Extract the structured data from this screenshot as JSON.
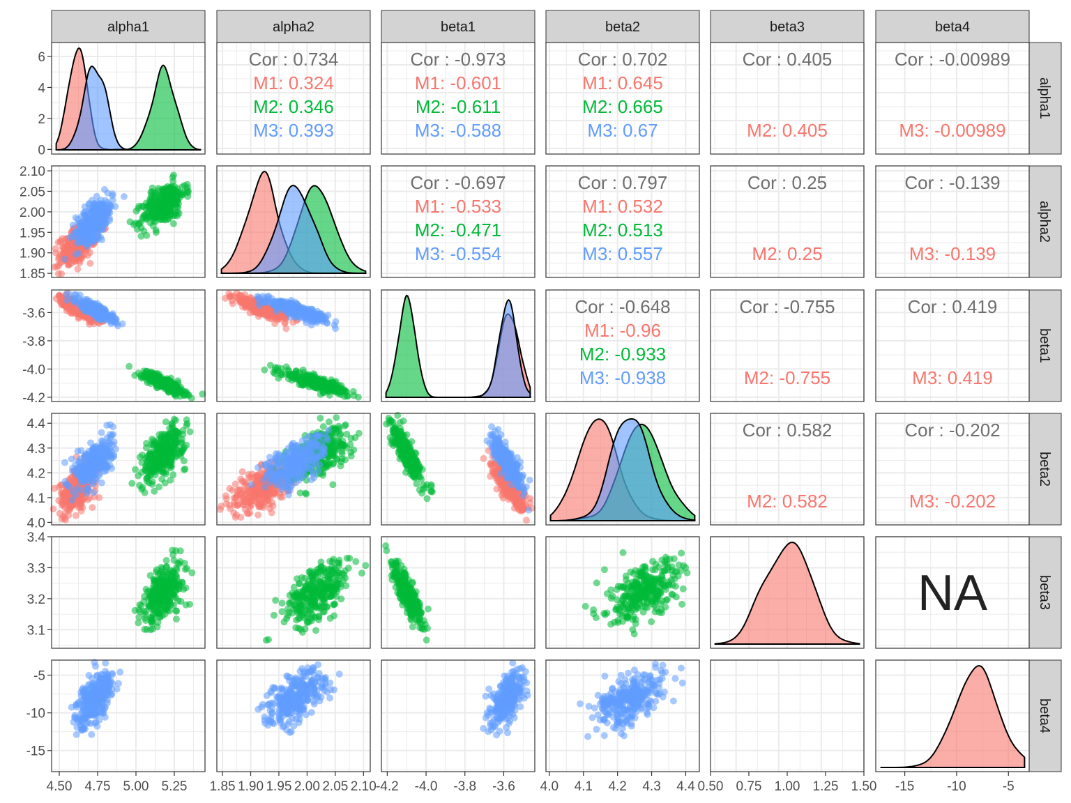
{
  "chart_data": {
    "type": "scatter",
    "variables": [
      "alpha1",
      "alpha2",
      "beta1",
      "beta2",
      "beta3",
      "beta4"
    ],
    "groups": [
      "M1",
      "M2",
      "M3"
    ],
    "colors": {
      "M1": "#F8766D",
      "M2": "#00BA38",
      "M3": "#619CFF",
      "panel_border": "#333333",
      "grid": "#EBEBEB",
      "strip": "#D3D3D3"
    },
    "axes": {
      "alpha1": {
        "range": [
          4.45,
          5.45
        ],
        "ticks": [
          4.5,
          4.75,
          5.0,
          5.25
        ],
        "tick_labels": [
          "4.50",
          "4.75",
          "5.00",
          "5.25"
        ]
      },
      "alpha2": {
        "range": [
          1.84,
          2.112
        ],
        "ticks": [
          1.85,
          1.9,
          1.95,
          2.0,
          2.05,
          2.1
        ],
        "tick_labels": [
          "1.85",
          "1.90",
          "1.95",
          "2.00",
          "2.05",
          "2.10"
        ]
      },
      "beta1": {
        "range": [
          -4.23,
          -3.44
        ],
        "ticks": [
          -4.2,
          -4.0,
          -3.8,
          -3.6
        ],
        "tick_labels": [
          "-4.2",
          "-4.0",
          "-3.8",
          "-3.6"
        ]
      },
      "beta2": {
        "range": [
          3.99,
          4.44
        ],
        "ticks": [
          4.0,
          4.1,
          4.2,
          4.3,
          4.4
        ],
        "tick_labels": [
          "4.0",
          "4.1",
          "4.2",
          "4.3",
          "4.4"
        ]
      },
      "beta3": {
        "range": [
          3.04,
          3.4
        ],
        "ticks": [
          3.1,
          3.2,
          3.3,
          3.4
        ],
        "tick_labels": [
          "3.1",
          "3.2",
          "3.3",
          "3.4"
        ]
      },
      "beta4": {
        "range": [
          -17.8,
          -3.0
        ],
        "ticks": [
          -15,
          -10,
          -5
        ],
        "tick_labels": [
          "-15",
          "-10",
          "-5"
        ]
      }
    },
    "density_x_axes": {
      "beta3": {
        "range": [
          0.5,
          1.5
        ],
        "ticks": [
          0.5,
          0.75,
          1.0,
          1.25,
          1.5
        ],
        "tick_labels": [
          "0.50",
          "0.75",
          "1.00",
          "1.25",
          "1.50"
        ]
      }
    },
    "density_y_axis": {
      "range": [
        -0.3,
        6.9
      ],
      "ticks": [
        0,
        2,
        4,
        6
      ],
      "tick_labels": [
        "0",
        "2",
        "4",
        "6"
      ]
    },
    "groups_present": {
      "alpha1": [
        "M1",
        "M2",
        "M3"
      ],
      "alpha2": [
        "M1",
        "M2",
        "M3"
      ],
      "beta1": [
        "M1",
        "M2",
        "M3"
      ],
      "beta2": [
        "M1",
        "M2",
        "M3"
      ],
      "beta3": [
        "M2"
      ],
      "beta4": [
        "M3"
      ]
    },
    "group_stats": {
      "M1": {
        "mean": {
          "alpha1": 4.62,
          "alpha2": 1.92,
          "beta1": -3.57,
          "beta2": 4.14
        },
        "sd": {
          "alpha1": 0.06,
          "alpha2": 0.026,
          "beta1": 0.045,
          "beta2": 0.05
        }
      },
      "M2": {
        "mean": {
          "alpha1": 5.18,
          "alpha2": 2.018,
          "beta1": -4.1,
          "beta2": 4.28,
          "beta3": 3.22
        },
        "sd": {
          "alpha1": 0.07,
          "alpha2": 0.028,
          "beta1": 0.04,
          "beta2": 0.055,
          "beta3": 0.05
        }
      },
      "M3": {
        "mean": {
          "alpha1": 4.73,
          "alpha2": 1.98,
          "beta1": -3.58,
          "beta2": 4.24,
          "beta4": -8
        },
        "sd": {
          "alpha1": 0.06,
          "alpha2": 0.027,
          "beta1": 0.04,
          "beta2": 0.05,
          "beta4": 1.8
        }
      }
    },
    "correlations": [
      {
        "row": "alpha1",
        "col": "alpha2",
        "cor": "Cor : 0.734",
        "groups": [
          {
            "label": "M1: 0.324",
            "group": "M1"
          },
          {
            "label": "M2: 0.346",
            "group": "M2"
          },
          {
            "label": "M3: 0.393",
            "group": "M3"
          }
        ]
      },
      {
        "row": "alpha1",
        "col": "beta1",
        "cor": "Cor : -0.973",
        "groups": [
          {
            "label": "M1: -0.601",
            "group": "M1"
          },
          {
            "label": "M2: -0.611",
            "group": "M2"
          },
          {
            "label": "M3: -0.588",
            "group": "M3"
          }
        ]
      },
      {
        "row": "alpha1",
        "col": "beta2",
        "cor": "Cor : 0.702",
        "groups": [
          {
            "label": "M1: 0.645",
            "group": "M1"
          },
          {
            "label": "M2: 0.665",
            "group": "M2"
          },
          {
            "label": "M3: 0.67",
            "group": "M3"
          }
        ]
      },
      {
        "row": "alpha1",
        "col": "beta3",
        "cor": "Cor : 0.405",
        "groups": [
          {
            "label": "M2: 0.405",
            "group": "M1"
          }
        ]
      },
      {
        "row": "alpha1",
        "col": "beta4",
        "cor": "Cor : -0.00989",
        "groups": [
          {
            "label": "M3: -0.00989",
            "group": "M1"
          }
        ]
      },
      {
        "row": "alpha2",
        "col": "beta1",
        "cor": "Cor : -0.697",
        "groups": [
          {
            "label": "M1: -0.533",
            "group": "M1"
          },
          {
            "label": "M2: -0.471",
            "group": "M2"
          },
          {
            "label": "M3: -0.554",
            "group": "M3"
          }
        ]
      },
      {
        "row": "alpha2",
        "col": "beta2",
        "cor": "Cor : 0.797",
        "groups": [
          {
            "label": "M1: 0.532",
            "group": "M1"
          },
          {
            "label": "M2: 0.513",
            "group": "M2"
          },
          {
            "label": "M3: 0.557",
            "group": "M3"
          }
        ]
      },
      {
        "row": "alpha2",
        "col": "beta3",
        "cor": "Cor : 0.25",
        "groups": [
          {
            "label": "M2: 0.25",
            "group": "M1"
          }
        ]
      },
      {
        "row": "alpha2",
        "col": "beta4",
        "cor": "Cor : -0.139",
        "groups": [
          {
            "label": "M3: -0.139",
            "group": "M1"
          }
        ]
      },
      {
        "row": "beta1",
        "col": "beta2",
        "cor": "Cor : -0.648",
        "groups": [
          {
            "label": "M1: -0.96",
            "group": "M1"
          },
          {
            "label": "M2: -0.933",
            "group": "M2"
          },
          {
            "label": "M3: -0.938",
            "group": "M3"
          }
        ]
      },
      {
        "row": "beta1",
        "col": "beta3",
        "cor": "Cor : -0.755",
        "groups": [
          {
            "label": "M2: -0.755",
            "group": "M1"
          }
        ]
      },
      {
        "row": "beta1",
        "col": "beta4",
        "cor": "Cor : 0.419",
        "groups": [
          {
            "label": "M3: 0.419",
            "group": "M1"
          }
        ]
      },
      {
        "row": "beta2",
        "col": "beta3",
        "cor": "Cor : 0.582",
        "groups": [
          {
            "label": "M2: 0.582",
            "group": "M1"
          }
        ]
      },
      {
        "row": "beta2",
        "col": "beta4",
        "cor": "Cor : -0.202",
        "groups": [
          {
            "label": "M3: -0.202",
            "group": "M1"
          }
        ]
      }
    ],
    "na_cells": [
      {
        "row": "beta3",
        "col": "beta4",
        "text": "NA"
      },
      {
        "row": "beta4",
        "col": "beta3",
        "text": "NA"
      }
    ]
  }
}
